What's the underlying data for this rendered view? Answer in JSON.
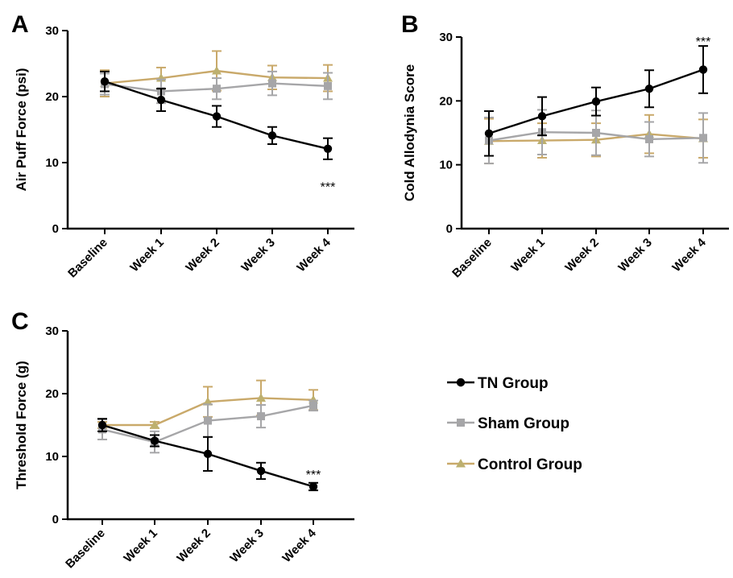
{
  "colors": {
    "tn": "#000000",
    "sham": "#a6a6a8",
    "control": "#c9a96a",
    "control_marker": "#bdb06f"
  },
  "legend": {
    "items": [
      {
        "key": "tn",
        "label": "TN Group",
        "marker": "circle"
      },
      {
        "key": "sham",
        "label": "Sham Group",
        "marker": "square"
      },
      {
        "key": "control",
        "label": "Control Group",
        "marker": "triangle"
      }
    ]
  },
  "chart_data": [
    {
      "panel": "A",
      "type": "line",
      "ylabel": "Air Puff Force (psi)",
      "ylim": [
        0,
        30
      ],
      "yticks": [
        0,
        10,
        20,
        30
      ],
      "categories": [
        "Baseline",
        "Week 1",
        "Week 2",
        "Week 3",
        "Week 4"
      ],
      "series": [
        {
          "key": "tn",
          "name": "TN Group",
          "values": [
            22.3,
            19.5,
            17.0,
            14.1,
            12.1
          ],
          "errors": [
            1.5,
            1.7,
            1.6,
            1.3,
            1.6
          ]
        },
        {
          "key": "sham",
          "name": "Sham Group",
          "values": [
            21.9,
            20.8,
            21.2,
            22.0,
            21.6
          ],
          "errors": [
            1.6,
            1.8,
            1.6,
            1.8,
            2.0
          ]
        },
        {
          "key": "control",
          "name": "Control Group",
          "values": [
            22.0,
            22.8,
            23.9,
            22.9,
            22.8
          ],
          "errors": [
            2.0,
            1.6,
            3.0,
            1.8,
            2.0
          ]
        }
      ],
      "annotation": {
        "text": "***",
        "category": "Week 4",
        "y": 6.4
      }
    },
    {
      "panel": "B",
      "type": "line",
      "ylabel": "Cold Allodynia Score",
      "ylim": [
        0,
        30
      ],
      "yticks": [
        0,
        10,
        20,
        30
      ],
      "categories": [
        "Baseline",
        "Week 1",
        "Week 2",
        "Week 3",
        "Week 4"
      ],
      "series": [
        {
          "key": "tn",
          "name": "TN Group",
          "values": [
            14.9,
            17.6,
            19.9,
            21.9,
            24.9
          ],
          "errors": [
            3.5,
            3.0,
            2.2,
            2.9,
            3.7
          ]
        },
        {
          "key": "sham",
          "name": "Sham Group",
          "values": [
            13.8,
            15.1,
            15.0,
            14.0,
            14.2
          ],
          "errors": [
            3.6,
            3.5,
            3.5,
            2.7,
            3.9
          ]
        },
        {
          "key": "control",
          "name": "Control Group",
          "values": [
            13.7,
            13.8,
            13.9,
            14.8,
            14.1
          ],
          "errors": [
            3.5,
            2.7,
            2.6,
            3.0,
            3.0
          ]
        }
      ],
      "annotation": {
        "text": "***",
        "category": "Week 4",
        "y": 29.4
      }
    },
    {
      "panel": "C",
      "type": "line",
      "ylabel": "Threshold Force (g)",
      "ylim": [
        0,
        30
      ],
      "yticks": [
        0,
        10,
        20,
        30
      ],
      "categories": [
        "Baseline",
        "Week 1",
        "Week 2",
        "Week 3",
        "Week 4"
      ],
      "series": [
        {
          "key": "tn",
          "name": "TN Group",
          "values": [
            15.0,
            12.5,
            10.4,
            7.7,
            5.2
          ],
          "errors": [
            1.0,
            0.9,
            2.7,
            1.3,
            0.6
          ]
        },
        {
          "key": "sham",
          "name": "Sham Group",
          "values": [
            14.3,
            12.3,
            15.7,
            16.4,
            18.1
          ],
          "errors": [
            1.6,
            1.7,
            2.6,
            1.8,
            0.8
          ]
        },
        {
          "key": "control",
          "name": "Control Group",
          "values": [
            15.0,
            15.0,
            18.7,
            19.3,
            19.0
          ],
          "errors": [
            0.5,
            0.5,
            2.4,
            2.8,
            1.6
          ]
        }
      ],
      "annotation": {
        "text": "***",
        "category": "Week 4",
        "y": 7.2
      }
    }
  ]
}
